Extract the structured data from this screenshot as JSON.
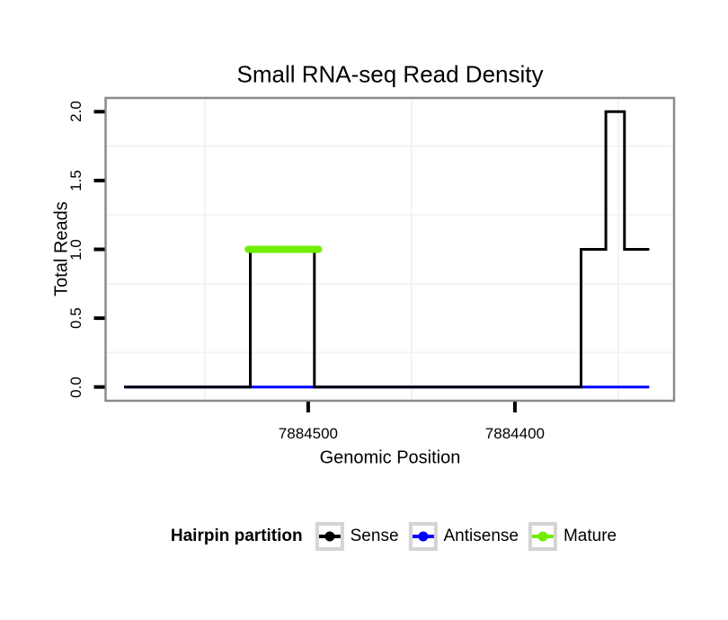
{
  "chart_data": {
    "type": "line",
    "title": "Small RNA-seq Read Density",
    "xlabel": "Genomic Position",
    "ylabel": "Total Reads",
    "x_axis": {
      "reversed": true,
      "limits": [
        7884598,
        7884323
      ],
      "ticks": [
        7884500,
        7884400
      ],
      "tick_labels": [
        "7884500",
        "7884400"
      ],
      "minor_gridlines": [
        7884550,
        7884450,
        7884350
      ]
    },
    "y_axis": {
      "limits": [
        -0.1,
        2.1
      ],
      "ticks": [
        0.0,
        0.5,
        1.0,
        1.5,
        2.0
      ],
      "tick_labels": [
        "0.0",
        "0.5",
        "1.0",
        "1.5",
        "2.0"
      ],
      "minor_gridlines": [
        0.25,
        0.75,
        1.25,
        1.75
      ]
    },
    "series": [
      {
        "name": "Antisense",
        "color": "#0000ff",
        "kind": "line",
        "stroke_width": 3,
        "points": [
          [
            7884589,
            0
          ],
          [
            7884335,
            0
          ]
        ]
      },
      {
        "name": "Sense",
        "color": "#000000",
        "kind": "step",
        "stroke_width": 3,
        "points": [
          [
            7884589,
            0
          ],
          [
            7884528,
            0
          ],
          [
            7884528,
            1
          ],
          [
            7884497,
            1
          ],
          [
            7884497,
            0
          ],
          [
            7884368,
            0
          ],
          [
            7884368,
            1
          ],
          [
            7884356,
            1
          ],
          [
            7884356,
            2
          ],
          [
            7884347,
            2
          ],
          [
            7884347,
            1
          ],
          [
            7884335,
            1
          ]
        ]
      },
      {
        "name": "Mature",
        "color": "#70ee00",
        "kind": "segment",
        "stroke_width": 8,
        "points": [
          [
            7884529,
            1
          ],
          [
            7884495,
            1
          ]
        ]
      }
    ],
    "grid": "minor-only",
    "legend_position": "bottom"
  },
  "legend": {
    "title": "Hairpin partition",
    "items": [
      {
        "label": "Sense",
        "color": "#000000"
      },
      {
        "label": "Antisense",
        "color": "#0000ff"
      },
      {
        "label": "Mature",
        "color": "#70ee00"
      }
    ]
  },
  "style_colors": {
    "panel_border": "#8b8b8b",
    "gridline": "#f3f3f3",
    "tick": "#000000",
    "legend_key_border": "#d4d4d4",
    "background": "#ffffff"
  }
}
